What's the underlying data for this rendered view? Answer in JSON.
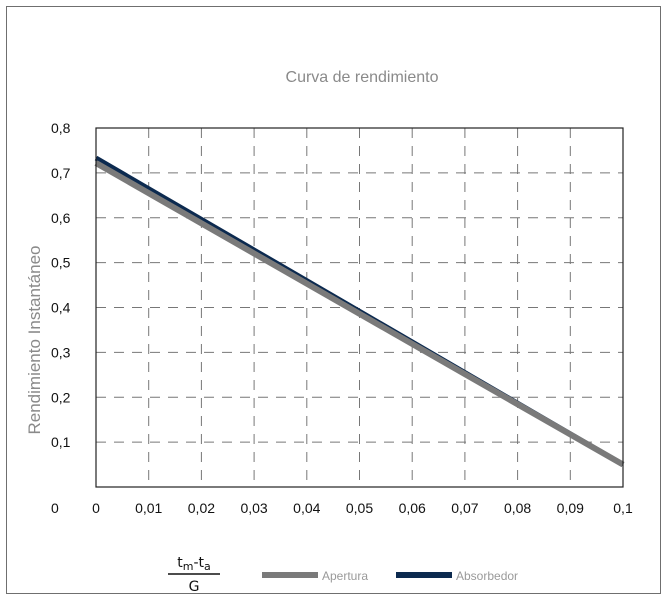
{
  "chart_data": {
    "type": "line",
    "title": "Curva de rendimiento",
    "ylabel": "Rendimiento Instantáneo",
    "xlabel": {
      "numerator_main": "t",
      "numerator_sub1": "m",
      "numerator_mid": "-t",
      "numerator_sub2": "a",
      "denominator": "G"
    },
    "xlim": [
      0,
      0.1
    ],
    "ylim": [
      0,
      0.8
    ],
    "x_ticks": [
      0,
      0.01,
      0.02,
      0.03,
      0.04,
      0.05,
      0.06,
      0.07,
      0.08,
      0.09,
      0.1
    ],
    "x_tick_labels": [
      "0",
      "0,01",
      "0,02",
      "0,03",
      "0,04",
      "0,05",
      "0,06",
      "0,07",
      "0,08",
      "0,09",
      "0,1"
    ],
    "y_ticks": [
      0,
      0.1,
      0.2,
      0.3,
      0.4,
      0.5,
      0.6,
      0.7,
      0.8
    ],
    "y_tick_labels": [
      "0",
      "0,1",
      "0,2",
      "0,3",
      "0,4",
      "0,5",
      "0,6",
      "0,7",
      "0,8"
    ],
    "grid": true,
    "legend_position": "bottom",
    "series": [
      {
        "name": "Apertura",
        "color": "#7a7a7a",
        "x": [
          0,
          0.1
        ],
        "y": [
          0.722,
          0.05
        ]
      },
      {
        "name": "Absorbedor",
        "color": "#0c2a4f",
        "x": [
          0,
          0.1
        ],
        "y": [
          0.733,
          0.05
        ]
      }
    ]
  }
}
